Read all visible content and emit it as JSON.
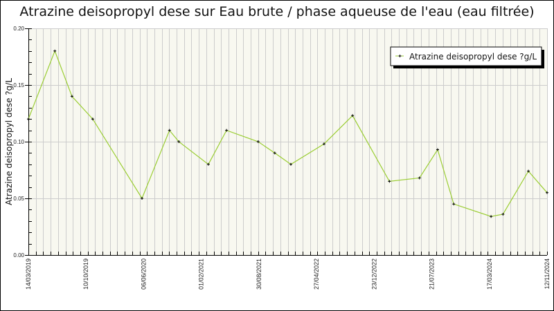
{
  "chart_data": {
    "type": "line",
    "title": "Atrazine deisopropyl dese sur Eau brute / phase aqueuse de l'eau (eau filtrée)",
    "xlabel": "",
    "ylabel": "Atrazine deisopropyl dese ?g/L",
    "ylim": [
      0,
      0.2
    ],
    "yticks": [
      "0.00",
      "0.05",
      "0.10",
      "0.15",
      "0.20"
    ],
    "xticks": [
      "14/03/2019",
      "10/10/2019",
      "06/06/2020",
      "01/02/2021",
      "30/08/2021",
      "27/04/2022",
      "23/12/2022",
      "21/07/2023",
      "17/03/2024",
      "12/11/2024"
    ],
    "grid": {
      "vertical": true,
      "horizontal": true
    },
    "legend_position": "top-right",
    "series": [
      {
        "name": "Atrazine deisopropyl dese ?g/L",
        "color": "#9acd32",
        "marker_color": "#000000",
        "points": [
          {
            "x_frac": 0.0,
            "y": 0.12
          },
          {
            "x_frac": 0.051,
            "y": 0.18
          },
          {
            "x_frac": 0.084,
            "y": 0.14
          },
          {
            "x_frac": 0.124,
            "y": 0.12
          },
          {
            "x_frac": 0.219,
            "y": 0.05
          },
          {
            "x_frac": 0.272,
            "y": 0.11
          },
          {
            "x_frac": 0.29,
            "y": 0.1
          },
          {
            "x_frac": 0.347,
            "y": 0.08
          },
          {
            "x_frac": 0.382,
            "y": 0.11
          },
          {
            "x_frac": 0.443,
            "y": 0.1
          },
          {
            "x_frac": 0.475,
            "y": 0.09
          },
          {
            "x_frac": 0.506,
            "y": 0.08
          },
          {
            "x_frac": 0.57,
            "y": 0.098
          },
          {
            "x_frac": 0.625,
            "y": 0.123
          },
          {
            "x_frac": 0.696,
            "y": 0.065
          },
          {
            "x_frac": 0.754,
            "y": 0.068
          },
          {
            "x_frac": 0.789,
            "y": 0.093
          },
          {
            "x_frac": 0.82,
            "y": 0.045
          },
          {
            "x_frac": 0.892,
            "y": 0.034
          },
          {
            "x_frac": 0.915,
            "y": 0.036
          },
          {
            "x_frac": 0.964,
            "y": 0.074
          },
          {
            "x_frac": 1.0,
            "y": 0.055
          }
        ]
      }
    ]
  },
  "colors": {
    "plot_background": "#f8f8f0",
    "grid": "#cccccc",
    "line": "#9acd32",
    "marker": "#000000"
  }
}
